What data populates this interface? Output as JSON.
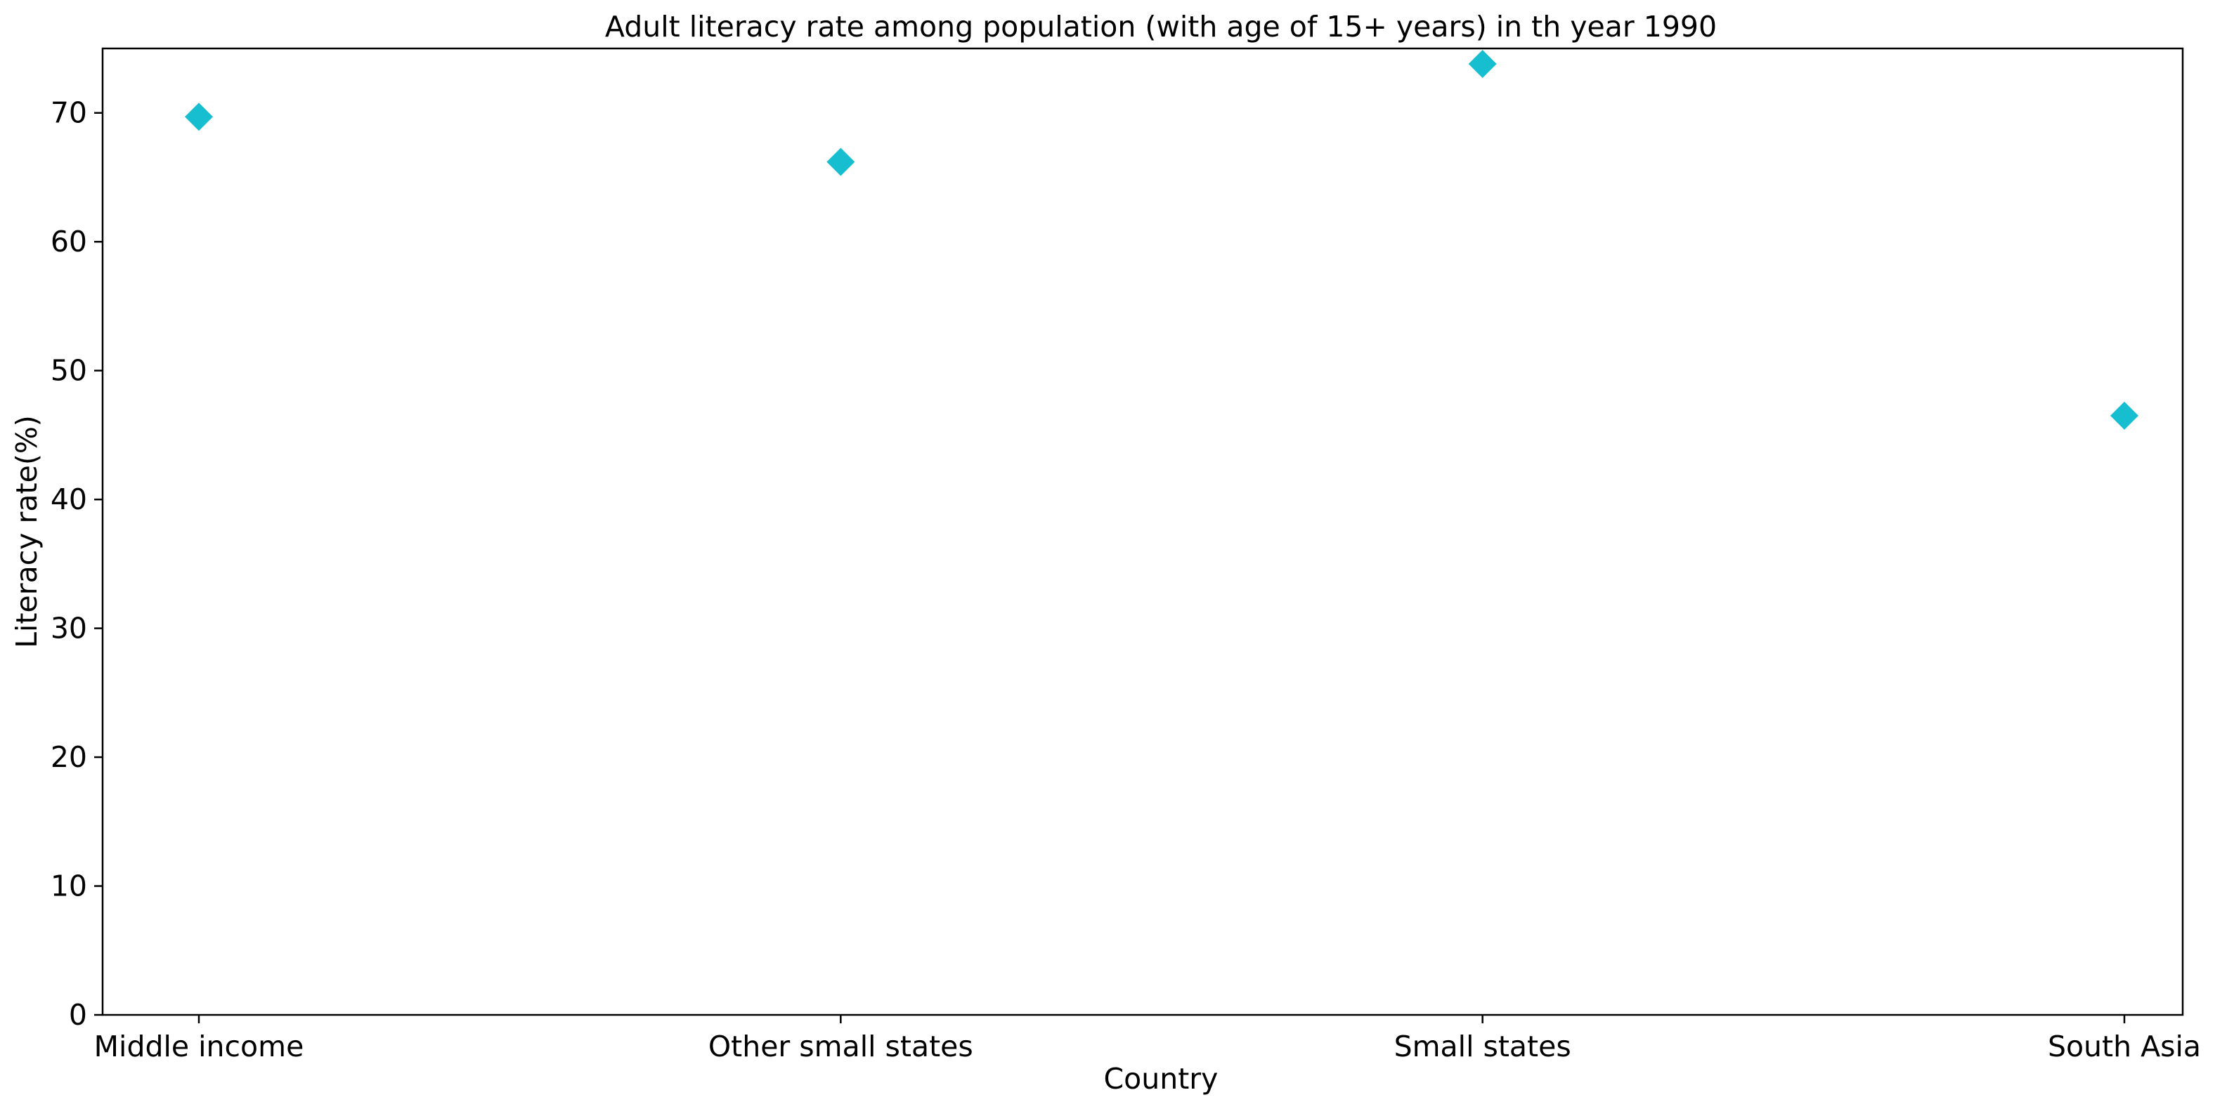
{
  "chart_data": {
    "type": "scatter",
    "title": "Adult literacy rate among population (with age of 15+ years) in th year 1990",
    "xlabel": "Country",
    "ylabel": "Literacy rate(%)",
    "categories": [
      "Middle income",
      "Other small states",
      "Small states",
      "South Asia"
    ],
    "values": [
      69.7,
      66.2,
      73.8,
      46.5
    ],
    "ylim": [
      0,
      75
    ],
    "yticks": [
      0,
      10,
      20,
      30,
      40,
      50,
      60,
      70
    ],
    "marker": "diamond",
    "marker_color": "#17becf",
    "grid": false,
    "legend": "none"
  }
}
